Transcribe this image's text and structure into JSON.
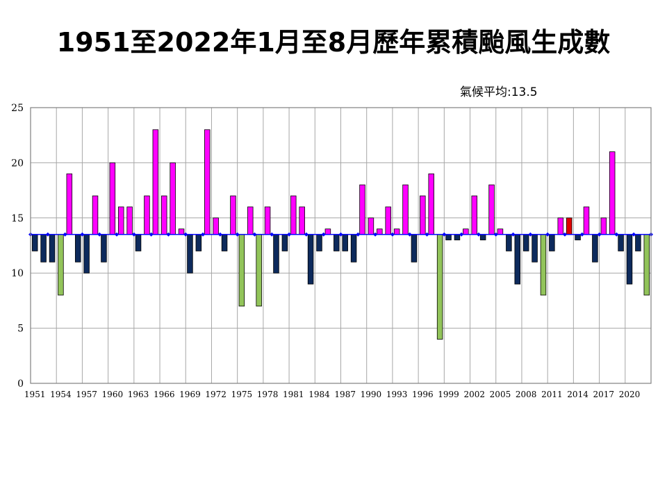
{
  "title": "1951至2022年1月至8月歷年累積颱風生成數",
  "annotation": "氣候平均:13.5",
  "colors": {
    "above": "#ff00ff",
    "below": "#0d2a5c",
    "lowest": "#92c45a",
    "current": "#e00000",
    "average_line": "#0000ff",
    "grid": "#a6a6a6",
    "axis": "#808080"
  },
  "chart_data": {
    "type": "bar",
    "title": "1951至2022年1月至8月歷年累積颱風生成數",
    "xlabel": "",
    "ylabel": "",
    "ylim": [
      0,
      25
    ],
    "yticks": [
      0,
      5,
      10,
      15,
      20,
      25
    ],
    "baseline": 13.5,
    "grid": true,
    "xtick_labels": [
      "1951",
      "1954",
      "1957",
      "1960",
      "1963",
      "1966",
      "1969",
      "1972",
      "1975",
      "1978",
      "1981",
      "1984",
      "1987",
      "1990",
      "1993",
      "1996",
      "1999",
      "2002",
      "2005",
      "2008",
      "2011",
      "2014",
      "2017",
      "2020"
    ],
    "categories": [
      1951,
      1952,
      1953,
      1954,
      1955,
      1956,
      1957,
      1958,
      1959,
      1960,
      1961,
      1962,
      1963,
      1964,
      1965,
      1966,
      1967,
      1968,
      1969,
      1970,
      1971,
      1972,
      1973,
      1974,
      1975,
      1976,
      1977,
      1978,
      1979,
      1980,
      1981,
      1982,
      1983,
      1984,
      1985,
      1986,
      1987,
      1988,
      1989,
      1990,
      1991,
      1992,
      1993,
      1994,
      1995,
      1996,
      1997,
      1998,
      1999,
      2000,
      2001,
      2002,
      2003,
      2004,
      2005,
      2006,
      2007,
      2008,
      2009,
      2010,
      2011,
      2012,
      2013,
      2014,
      2015,
      2016,
      2017,
      2018,
      2019,
      2020,
      2021,
      2022
    ],
    "values": [
      12,
      11,
      11,
      8,
      19,
      11,
      10,
      17,
      11,
      20,
      16,
      16,
      12,
      17,
      23,
      17,
      20,
      14,
      10,
      12,
      23,
      15,
      12,
      17,
      7,
      16,
      7,
      16,
      10,
      12,
      17,
      16,
      9,
      12,
      14,
      12,
      12,
      11,
      18,
      15,
      14,
      16,
      14,
      18,
      11,
      17,
      19,
      4,
      13,
      13,
      14,
      17,
      13,
      18,
      14,
      12,
      9,
      12,
      11,
      8,
      12,
      15,
      15,
      13,
      16,
      11,
      15,
      21,
      12,
      9,
      12,
      8
    ],
    "highlight_years": {
      "lowest": [
        1954,
        1975,
        1977,
        1998,
        2010,
        2022
      ],
      "current": [
        2013
      ]
    }
  }
}
